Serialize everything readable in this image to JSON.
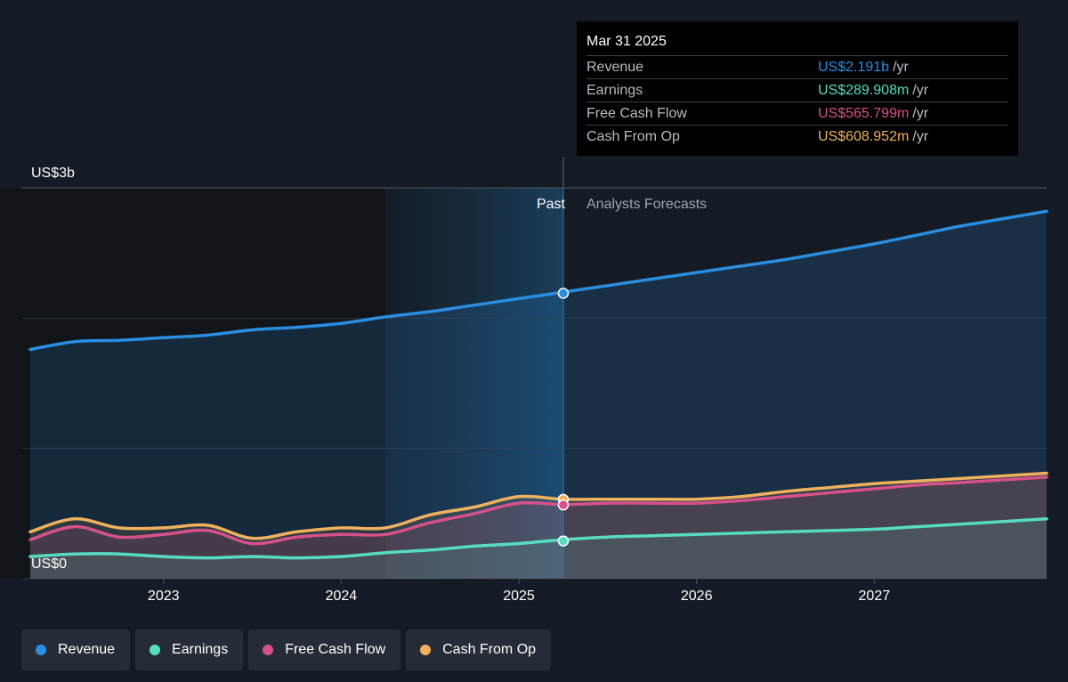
{
  "tooltip": {
    "date": "Mar 31 2025",
    "rows": [
      {
        "label": "Revenue",
        "value": "US$2.191b",
        "unit": "/yr",
        "color": "#2a8de0"
      },
      {
        "label": "Earnings",
        "value": "US$289.908m",
        "unit": "/yr",
        "color": "#57dcc0"
      },
      {
        "label": "Free Cash Flow",
        "value": "US$565.799m",
        "unit": "/yr",
        "color": "#d6518a"
      },
      {
        "label": "Cash From Op",
        "value": "US$608.952m",
        "unit": "/yr",
        "color": "#eeb15e"
      }
    ]
  },
  "labels": {
    "past": "Past",
    "forecast": "Analysts Forecasts"
  },
  "legend": [
    {
      "label": "Revenue",
      "color": "#2a8de0"
    },
    {
      "label": "Earnings",
      "color": "#57dcc0"
    },
    {
      "label": "Free Cash Flow",
      "color": "#d6518a"
    },
    {
      "label": "Cash From Op",
      "color": "#eeb15e"
    }
  ],
  "chart_data": {
    "type": "area",
    "y_tick_labels": [
      "US$0",
      "US$3b"
    ],
    "ylim": [
      0,
      3.0
    ],
    "y_unit": "US$ billions",
    "xlim": [
      2022.2,
      2027.97
    ],
    "x_tick_labels": [
      "2023",
      "2024",
      "2025",
      "2026",
      "2027"
    ],
    "x_ticks": [
      2023,
      2024,
      2025,
      2026,
      2027
    ],
    "highlight_range": [
      2024.25,
      2025.25
    ],
    "divider_x": 2025.25,
    "gridlines": [
      0,
      1,
      2,
      3
    ],
    "series": [
      {
        "name": "Revenue",
        "color": "#2a8de0",
        "fill": true,
        "x": [
          2022.25,
          2022.5,
          2022.75,
          2023.0,
          2023.25,
          2023.5,
          2023.75,
          2024.0,
          2024.25,
          2024.5,
          2024.75,
          2025.0,
          2025.25,
          2025.5,
          2025.75,
          2026.0,
          2026.25,
          2026.5,
          2026.75,
          2027.0,
          2027.25,
          2027.5,
          2027.97
        ],
        "y": [
          1.76,
          1.82,
          1.83,
          1.85,
          1.87,
          1.91,
          1.93,
          1.96,
          2.01,
          2.05,
          2.1,
          2.15,
          2.2,
          2.25,
          2.3,
          2.35,
          2.4,
          2.45,
          2.51,
          2.57,
          2.64,
          2.71,
          2.82
        ]
      },
      {
        "name": "Cash From Op",
        "color": "#eeb15e",
        "fill": true,
        "x": [
          2022.25,
          2022.5,
          2022.75,
          2023.0,
          2023.25,
          2023.5,
          2023.75,
          2024.0,
          2024.25,
          2024.5,
          2024.75,
          2025.0,
          2025.25,
          2025.5,
          2025.75,
          2026.0,
          2026.25,
          2026.5,
          2026.75,
          2027.0,
          2027.25,
          2027.5,
          2027.97
        ],
        "y": [
          0.36,
          0.46,
          0.39,
          0.39,
          0.41,
          0.31,
          0.36,
          0.39,
          0.39,
          0.49,
          0.55,
          0.63,
          0.61,
          0.61,
          0.61,
          0.61,
          0.63,
          0.67,
          0.7,
          0.73,
          0.75,
          0.77,
          0.81
        ]
      },
      {
        "name": "Free Cash Flow",
        "color": "#d6518a",
        "fill": true,
        "x": [
          2022.25,
          2022.5,
          2022.75,
          2023.0,
          2023.25,
          2023.5,
          2023.75,
          2024.0,
          2024.25,
          2024.5,
          2024.75,
          2025.0,
          2025.25,
          2025.5,
          2025.75,
          2026.0,
          2026.25,
          2026.5,
          2026.75,
          2027.0,
          2027.25,
          2027.5,
          2027.97
        ],
        "y": [
          0.3,
          0.4,
          0.32,
          0.34,
          0.37,
          0.27,
          0.32,
          0.34,
          0.34,
          0.43,
          0.5,
          0.58,
          0.57,
          0.58,
          0.58,
          0.58,
          0.6,
          0.63,
          0.66,
          0.69,
          0.72,
          0.74,
          0.78
        ]
      },
      {
        "name": "Earnings",
        "color": "#57dcc0",
        "fill": true,
        "x": [
          2022.25,
          2022.5,
          2022.75,
          2023.0,
          2023.25,
          2023.5,
          2023.75,
          2024.0,
          2024.25,
          2024.5,
          2024.75,
          2025.0,
          2025.25,
          2025.5,
          2025.75,
          2026.0,
          2026.25,
          2026.5,
          2026.75,
          2027.0,
          2027.25,
          2027.5,
          2027.97
        ],
        "y": [
          0.17,
          0.19,
          0.19,
          0.17,
          0.16,
          0.17,
          0.16,
          0.17,
          0.2,
          0.22,
          0.25,
          0.27,
          0.3,
          0.32,
          0.33,
          0.34,
          0.35,
          0.36,
          0.37,
          0.38,
          0.4,
          0.42,
          0.46
        ]
      }
    ],
    "markers": [
      {
        "series": "Revenue",
        "x": 2025.25,
        "y": 2.191
      },
      {
        "series": "Cash From Op",
        "x": 2025.25,
        "y": 0.609
      },
      {
        "series": "Free Cash Flow",
        "x": 2025.25,
        "y": 0.566
      },
      {
        "series": "Earnings",
        "x": 2025.25,
        "y": 0.29
      }
    ]
  }
}
